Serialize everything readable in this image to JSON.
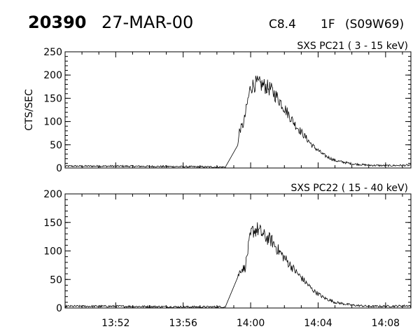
{
  "header": {
    "event_number": "20390",
    "date": "27-MAR-00",
    "goes_class": "C8.4",
    "optical_class": "1F",
    "location": "(S09W69)"
  },
  "chart_data": [
    {
      "type": "line",
      "title": "SXS PC21  (  3 - 15 keV)",
      "ylabel": "CTS/SEC",
      "xlabel": "",
      "ylim": [
        0,
        250
      ],
      "yticks": [
        0,
        50,
        100,
        150,
        200,
        250
      ],
      "xlim": [
        "13:49",
        "14:09:30"
      ],
      "xticks": [
        "13:52",
        "13:56",
        "14:00",
        "14:04",
        "14:08"
      ],
      "grid": false,
      "series": [
        {
          "values": [
            [
              "13:49",
              4
            ],
            [
              "13:52",
              4
            ],
            [
              "13:56",
              3
            ],
            [
              "13:58:30",
              2
            ],
            [
              "13:59:15",
              50
            ],
            [
              "13:59:20",
              80
            ],
            [
              "13:59:35",
              95
            ],
            [
              "13:59:50",
              145
            ],
            [
              "14:00:00",
              175
            ],
            [
              "14:00:20",
              182
            ],
            [
              "14:00:45",
              178
            ],
            [
              "14:01:10",
              170
            ],
            [
              "14:01:40",
              148
            ],
            [
              "14:02:10",
              120
            ],
            [
              "14:02:40",
              92
            ],
            [
              "14:03:10",
              70
            ],
            [
              "14:03:40",
              48
            ],
            [
              "14:04:20",
              28
            ],
            [
              "14:05:00",
              16
            ],
            [
              "14:06:00",
              9
            ],
            [
              "14:07:00",
              6
            ],
            [
              "14:08:00",
              5
            ],
            [
              "14:09:30",
              6
            ]
          ]
        }
      ]
    },
    {
      "type": "line",
      "title": "SXS PC22  ( 15 - 40 keV)",
      "ylabel": "",
      "xlabel": "",
      "ylim": [
        0,
        200
      ],
      "yticks": [
        0,
        50,
        100,
        150,
        200
      ],
      "xlim": [
        "13:49",
        "14:09:30"
      ],
      "xticks": [
        "13:52",
        "13:56",
        "14:00",
        "14:04",
        "14:08"
      ],
      "grid": false,
      "series": [
        {
          "values": [
            [
              "13:49",
              3
            ],
            [
              "13:52",
              3
            ],
            [
              "13:56",
              2
            ],
            [
              "13:58:30",
              2
            ],
            [
              "13:59:15",
              55
            ],
            [
              "13:59:25",
              68
            ],
            [
              "13:59:40",
              70
            ],
            [
              "13:59:55",
              115
            ],
            [
              "14:00:05",
              135
            ],
            [
              "14:00:25",
              138
            ],
            [
              "14:00:50",
              125
            ],
            [
              "14:01:15",
              118
            ],
            [
              "14:01:40",
              100
            ],
            [
              "14:02:10",
              82
            ],
            [
              "14:02:40",
              64
            ],
            [
              "14:03:10",
              48
            ],
            [
              "14:03:40",
              32
            ],
            [
              "14:04:20",
              18
            ],
            [
              "14:05:00",
              10
            ],
            [
              "14:06:00",
              5
            ],
            [
              "14:07:00",
              3
            ],
            [
              "14:08:00",
              3
            ],
            [
              "14:09:30",
              4
            ]
          ]
        }
      ]
    }
  ]
}
